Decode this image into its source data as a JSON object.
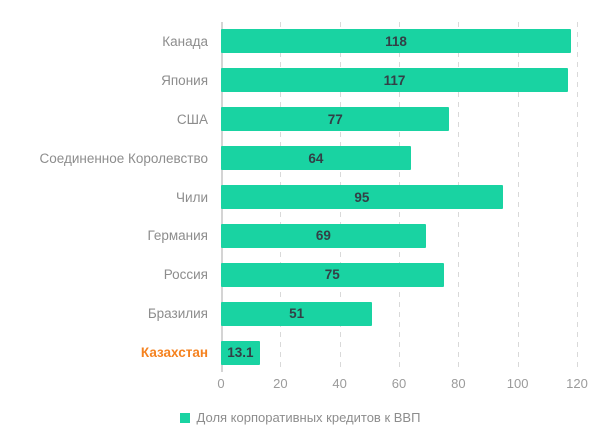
{
  "chart_data": {
    "type": "bar",
    "orientation": "horizontal",
    "categories": [
      "Канада",
      "Япония",
      "США",
      "Соединенное Королевство",
      "Чили",
      "Германия",
      "Россия",
      "Бразилия",
      "Казахстан"
    ],
    "values": [
      118,
      117,
      77,
      64,
      95,
      69,
      75,
      51,
      13.1
    ],
    "value_labels": [
      "118",
      "117",
      "77",
      "64",
      "95",
      "69",
      "75",
      "51",
      "13.1"
    ],
    "highlighted_category": "Казахстан",
    "legend": "Доля корпоративных кредитов к ВВП",
    "title": "",
    "xlabel": "",
    "ylabel": "",
    "xlim": [
      0,
      120
    ],
    "x_ticks": [
      0,
      20,
      40,
      60,
      80,
      100,
      120
    ],
    "grid": "dashed-vertical",
    "legend_position": "bottom-center",
    "colors": {
      "bar": "#19d3a2",
      "value_label": "#333f46",
      "category_label": "#8d8d8d",
      "highlight_label": "#f5821f",
      "gridline": "#d9d9d9",
      "axis_line": "#d4d4d4",
      "tick_label": "#9b9b9b",
      "background": "#ffffff"
    }
  }
}
